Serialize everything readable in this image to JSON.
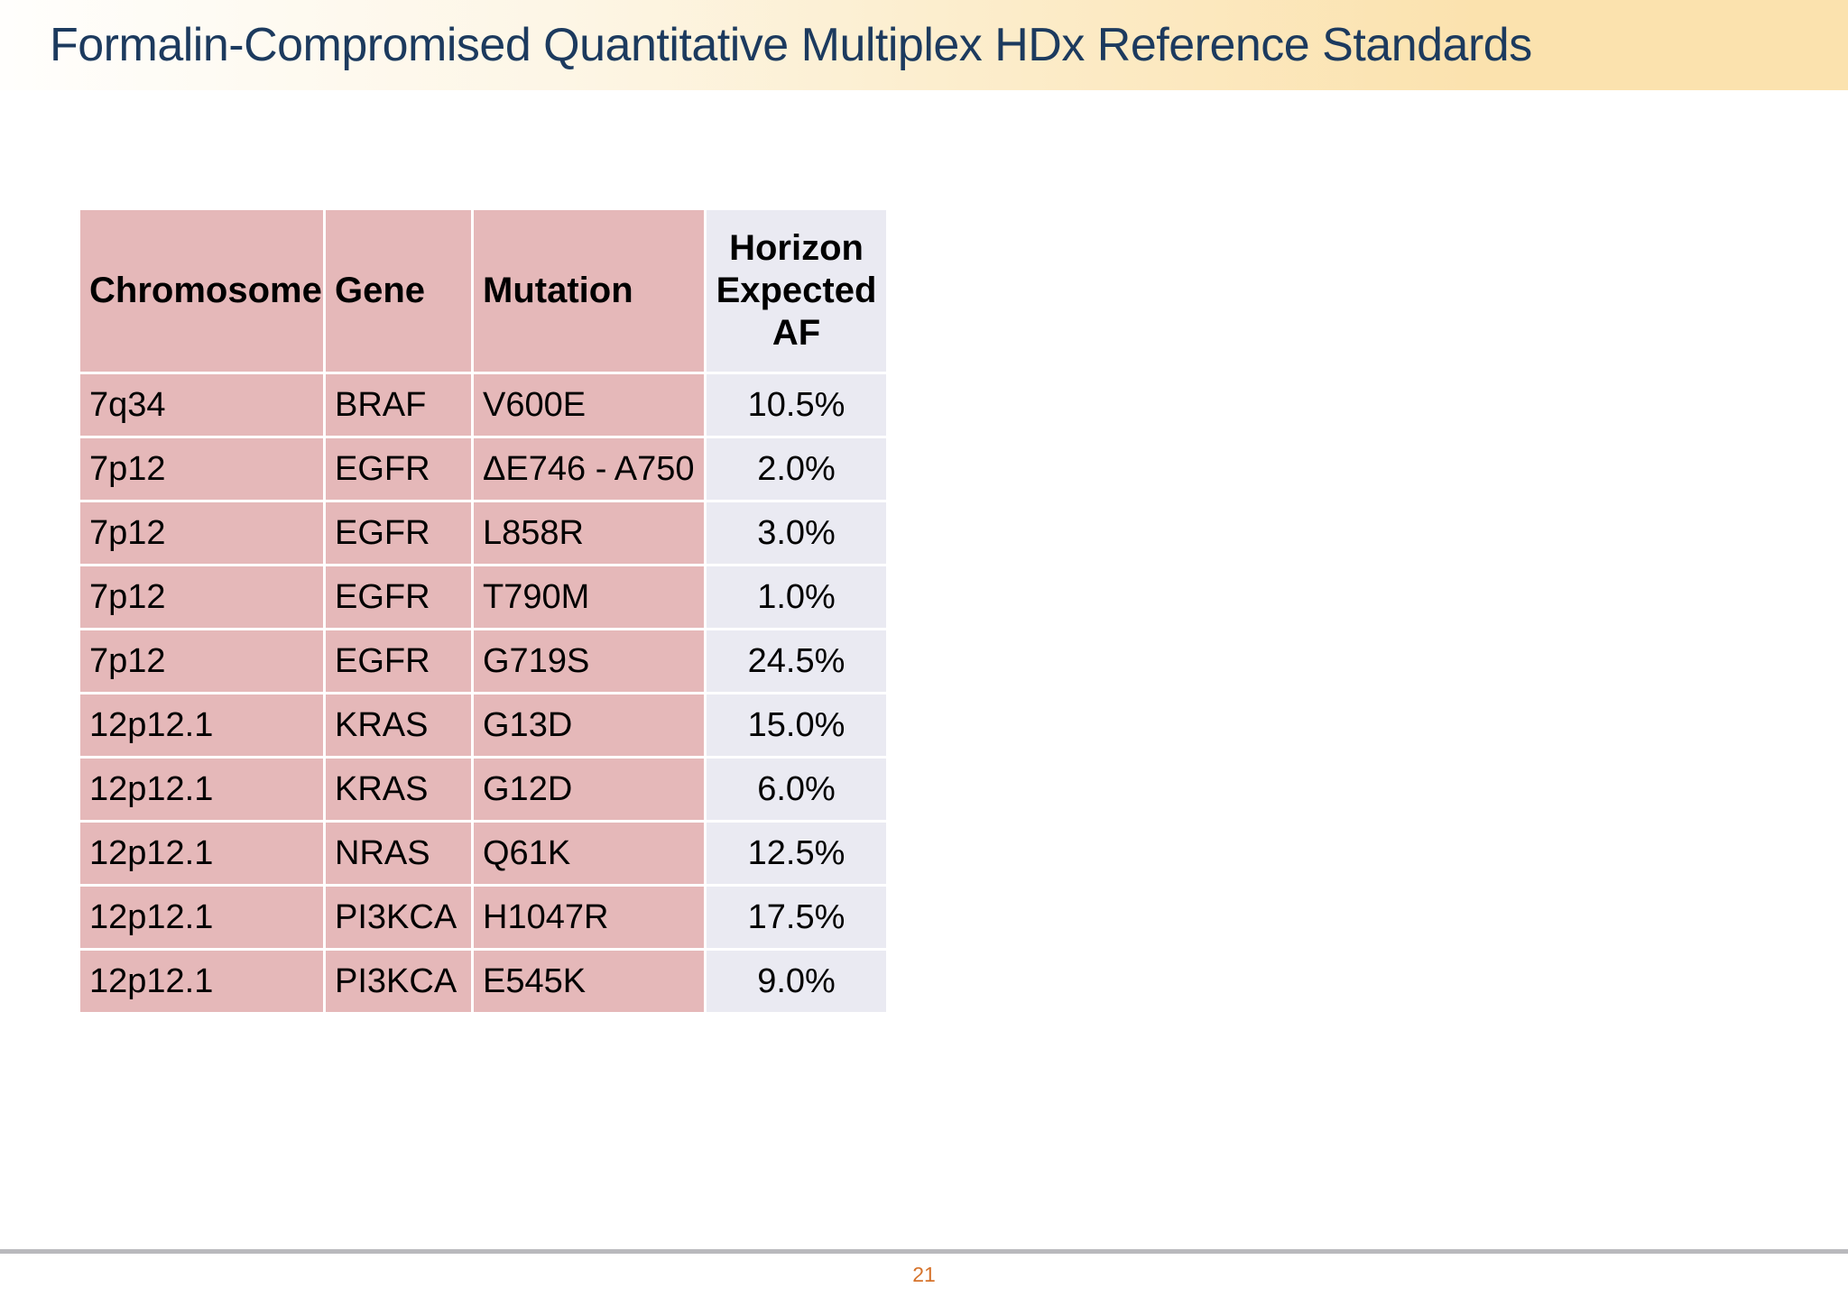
{
  "slide": {
    "title": "Formalin-Compromised Quantitative Multiplex HDx Reference Standards",
    "page_number": "21"
  },
  "table": {
    "headers": [
      "Chromosome",
      "Gene",
      "Mutation",
      "Horizon Expected AF"
    ],
    "rows": [
      [
        "7q34",
        "BRAF",
        "V600E",
        "10.5%"
      ],
      [
        "7p12",
        "EGFR",
        "ΔE746 - A750",
        "2.0%"
      ],
      [
        "7p12",
        "EGFR",
        "L858R",
        "3.0%"
      ],
      [
        "7p12",
        "EGFR",
        "T790M",
        "1.0%"
      ],
      [
        "7p12",
        "EGFR",
        "G719S",
        "24.5%"
      ],
      [
        "12p12.1",
        "KRAS",
        "G13D",
        "15.0%"
      ],
      [
        "12p12.1",
        "KRAS",
        "G12D",
        "6.0%"
      ],
      [
        "12p12.1",
        "NRAS",
        "Q61K",
        "12.5%"
      ],
      [
        "12p12.1",
        "PI3KCA",
        "H1047R",
        "17.5%"
      ],
      [
        "12p12.1",
        "PI3KCA",
        "E545K",
        "9.0%"
      ]
    ],
    "cell_names": [
      "chromosome-cell",
      "gene-cell",
      "mutation-cell",
      "af-cell"
    ]
  },
  "colors": {
    "pink": "#e5b8b9",
    "af_bg": "#eaeaf2",
    "title_navy": "#1c3a5e",
    "page_orange": "#d6732b",
    "divider_gray": "#b9b9bd",
    "band_peach": "#fbe2ae"
  }
}
